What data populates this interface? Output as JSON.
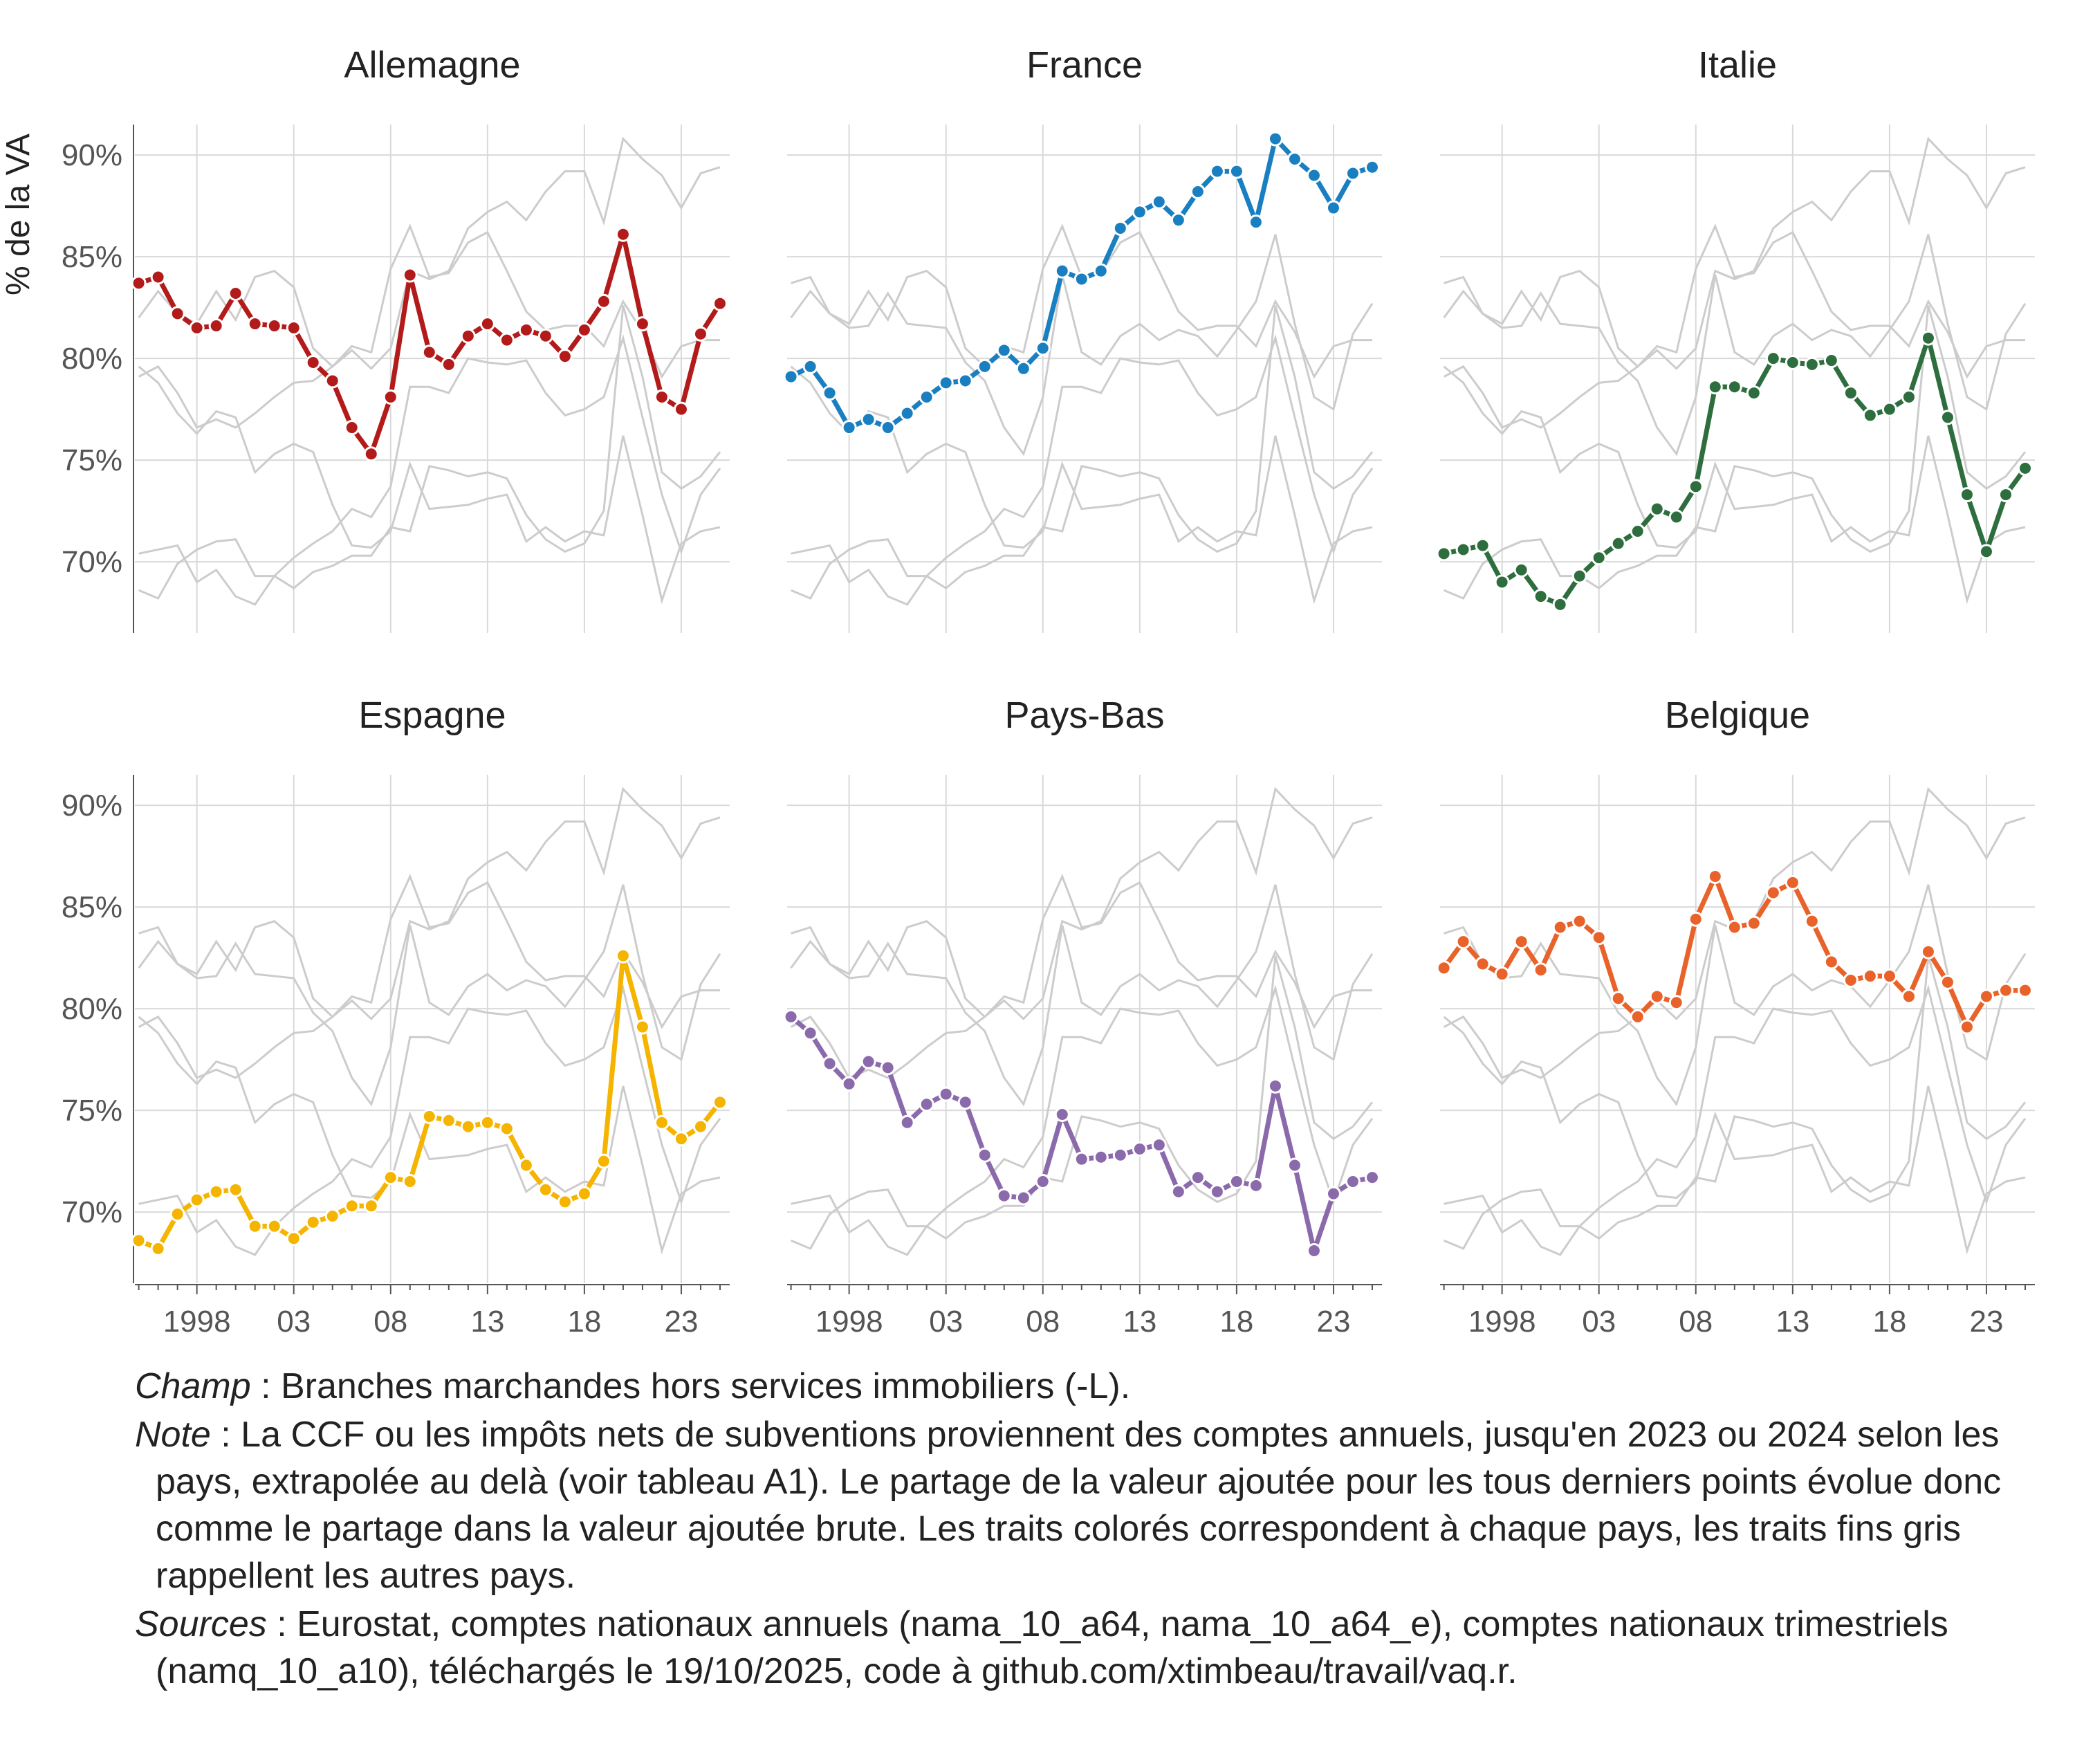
{
  "chart_data": {
    "type": "line",
    "ylabel": "% de la VA",
    "xlabel": "",
    "ylim": [
      66.5,
      91.5
    ],
    "xlim": [
      1994.8,
      2025.5
    ],
    "yticks": [
      70,
      75,
      80,
      85,
      90
    ],
    "ytick_labels": [
      "70%",
      "75%",
      "80%",
      "85%",
      "90%"
    ],
    "xticks": [
      1998,
      2003,
      2008,
      2013,
      2018,
      2023
    ],
    "xtick_labels": [
      "1998",
      "03",
      "08",
      "13",
      "18",
      "23"
    ],
    "grid": true,
    "background_series_color": "#cccccc",
    "x": [
      1995,
      1996,
      1997,
      1998,
      1999,
      2000,
      2001,
      2002,
      2003,
      2004,
      2005,
      2006,
      2007,
      2008,
      2009,
      2010,
      2011,
      2012,
      2013,
      2014,
      2015,
      2016,
      2017,
      2018,
      2019,
      2020,
      2021,
      2022,
      2023,
      2024,
      2025
    ],
    "series": [
      {
        "name": "Allemagne",
        "color": "#b31b1b",
        "values": [
          83.7,
          84.0,
          82.2,
          81.5,
          81.6,
          83.2,
          81.7,
          81.6,
          81.5,
          79.8,
          78.9,
          76.6,
          75.3,
          78.1,
          84.1,
          80.3,
          79.7,
          81.1,
          81.7,
          80.9,
          81.4,
          81.1,
          80.1,
          81.4,
          82.8,
          86.1,
          81.7,
          78.1,
          77.5,
          81.2,
          82.7
        ]
      },
      {
        "name": "France",
        "color": "#1a7fc1",
        "values": [
          79.1,
          79.6,
          78.3,
          76.6,
          77.0,
          76.6,
          77.3,
          78.1,
          78.8,
          78.9,
          79.6,
          80.4,
          79.5,
          80.5,
          84.3,
          83.9,
          84.3,
          86.4,
          87.2,
          87.7,
          86.8,
          88.2,
          89.2,
          89.2,
          86.7,
          90.8,
          89.8,
          89.0,
          87.4,
          89.1,
          89.4
        ]
      },
      {
        "name": "Italie",
        "color": "#2e6e3e",
        "values": [
          70.4,
          70.6,
          70.8,
          69.0,
          69.6,
          68.3,
          67.9,
          69.3,
          70.2,
          70.9,
          71.5,
          72.6,
          72.2,
          73.7,
          78.6,
          78.6,
          78.3,
          80.0,
          79.8,
          79.7,
          79.9,
          78.3,
          77.2,
          77.5,
          78.1,
          81.0,
          77.1,
          73.3,
          70.5,
          73.3,
          74.6
        ]
      },
      {
        "name": "Espagne",
        "color": "#f5b400",
        "values": [
          68.6,
          68.2,
          69.9,
          70.6,
          71.0,
          71.1,
          69.3,
          69.3,
          68.7,
          69.5,
          69.8,
          70.3,
          70.3,
          71.7,
          71.5,
          74.7,
          74.5,
          74.2,
          74.4,
          74.1,
          72.3,
          71.1,
          70.5,
          70.9,
          72.5,
          82.6,
          79.1,
          74.4,
          73.6,
          74.2,
          75.4
        ]
      },
      {
        "name": "Pays-Bas",
        "color": "#8b6aab",
        "values": [
          79.6,
          78.8,
          77.3,
          76.3,
          77.4,
          77.1,
          74.4,
          75.3,
          75.8,
          75.4,
          72.8,
          70.8,
          70.7,
          71.5,
          74.8,
          72.6,
          72.7,
          72.8,
          73.1,
          73.3,
          71.0,
          71.7,
          71.0,
          71.5,
          71.3,
          76.2,
          72.3,
          68.1,
          70.9,
          71.5,
          71.7
        ]
      },
      {
        "name": "Belgique",
        "color": "#e8622a",
        "values": [
          82.0,
          83.3,
          82.2,
          81.7,
          83.3,
          81.9,
          84.0,
          84.3,
          83.5,
          80.5,
          79.6,
          80.6,
          80.3,
          84.4,
          86.5,
          84.0,
          84.2,
          85.7,
          86.2,
          84.3,
          82.3,
          81.4,
          81.6,
          81.6,
          80.6,
          82.8,
          81.3,
          79.1,
          80.6,
          80.9,
          80.9
        ]
      }
    ]
  },
  "notes": {
    "champ_lead": "Champ",
    "champ_text": " : Branches marchandes hors services immobiliers (-L).",
    "note_lead": "Note",
    "note_text": " : La CCF ou les impôts nets de subventions proviennent des comptes annuels, jusqu'en 2023 ou 2024 selon les pays, extrapolée au delà (voir tableau A1). Le partage de la valeur ajoutée pour les tous derniers points évolue donc comme le partage dans la valeur ajoutée brute. Les traits colorés correspondent à chaque pays, les traits fins gris rappellent les autres pays.",
    "sources_lead": "Sources",
    "sources_text": " : Eurostat, comptes nationaux annuels (nama_10_a64, nama_10_a64_e), comptes nationaux trimestriels (namq_10_a10), téléchargés le 19/10/2025, code à github.com/xtimbeau/travail/vaq.r."
  }
}
